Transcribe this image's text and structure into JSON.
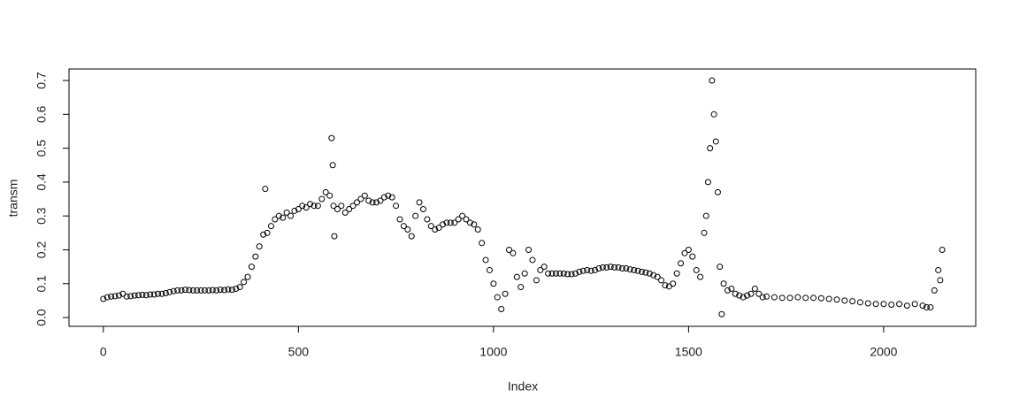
{
  "chart_data": {
    "type": "scatter",
    "xlabel": "Index",
    "ylabel": "transm",
    "x": [
      0,
      10,
      20,
      30,
      40,
      50,
      60,
      70,
      80,
      90,
      100,
      110,
      120,
      130,
      140,
      150,
      160,
      170,
      180,
      190,
      200,
      210,
      220,
      230,
      240,
      250,
      260,
      270,
      280,
      290,
      300,
      310,
      320,
      330,
      340,
      350,
      360,
      370,
      380,
      390,
      400,
      410,
      415,
      420,
      430,
      440,
      450,
      460,
      470,
      480,
      490,
      500,
      510,
      520,
      530,
      540,
      550,
      560,
      570,
      580,
      585,
      588,
      590,
      592,
      600,
      610,
      620,
      630,
      640,
      650,
      660,
      670,
      680,
      690,
      700,
      710,
      720,
      730,
      740,
      750,
      760,
      770,
      780,
      790,
      800,
      810,
      820,
      830,
      840,
      850,
      860,
      870,
      880,
      890,
      900,
      910,
      920,
      930,
      940,
      950,
      960,
      970,
      980,
      990,
      1000,
      1010,
      1020,
      1030,
      1040,
      1050,
      1060,
      1070,
      1080,
      1090,
      1100,
      1110,
      1120,
      1130,
      1140,
      1150,
      1160,
      1170,
      1180,
      1190,
      1200,
      1210,
      1220,
      1230,
      1240,
      1250,
      1260,
      1270,
      1280,
      1290,
      1300,
      1310,
      1320,
      1330,
      1340,
      1350,
      1360,
      1370,
      1380,
      1390,
      1400,
      1410,
      1420,
      1430,
      1440,
      1450,
      1460,
      1470,
      1480,
      1490,
      1500,
      1510,
      1520,
      1530,
      1540,
      1545,
      1550,
      1555,
      1560,
      1565,
      1570,
      1575,
      1580,
      1585,
      1590,
      1600,
      1610,
      1620,
      1630,
      1640,
      1650,
      1660,
      1670,
      1680,
      1690,
      1700,
      1720,
      1740,
      1760,
      1780,
      1800,
      1820,
      1840,
      1860,
      1880,
      1900,
      1920,
      1940,
      1960,
      1980,
      2000,
      2020,
      2040,
      2060,
      2080,
      2100,
      2110,
      2120,
      2130,
      2140,
      2145,
      2150
    ],
    "values": [
      0.055,
      0.06,
      0.062,
      0.063,
      0.065,
      0.07,
      0.062,
      0.063,
      0.065,
      0.066,
      0.067,
      0.066,
      0.068,
      0.068,
      0.07,
      0.07,
      0.072,
      0.075,
      0.078,
      0.08,
      0.08,
      0.082,
      0.081,
      0.08,
      0.08,
      0.08,
      0.08,
      0.08,
      0.081,
      0.08,
      0.082,
      0.081,
      0.083,
      0.082,
      0.085,
      0.09,
      0.105,
      0.12,
      0.15,
      0.18,
      0.21,
      0.245,
      0.38,
      0.25,
      0.27,
      0.29,
      0.3,
      0.295,
      0.31,
      0.3,
      0.315,
      0.32,
      0.33,
      0.325,
      0.335,
      0.33,
      0.33,
      0.35,
      0.37,
      0.36,
      0.53,
      0.45,
      0.33,
      0.24,
      0.32,
      0.33,
      0.31,
      0.32,
      0.33,
      0.34,
      0.35,
      0.36,
      0.345,
      0.34,
      0.34,
      0.345,
      0.355,
      0.36,
      0.355,
      0.33,
      0.29,
      0.27,
      0.26,
      0.24,
      0.3,
      0.34,
      0.32,
      0.29,
      0.27,
      0.26,
      0.265,
      0.275,
      0.28,
      0.28,
      0.28,
      0.29,
      0.3,
      0.29,
      0.28,
      0.275,
      0.26,
      0.22,
      0.17,
      0.14,
      0.1,
      0.06,
      0.025,
      0.07,
      0.2,
      0.19,
      0.12,
      0.09,
      0.13,
      0.2,
      0.17,
      0.11,
      0.14,
      0.15,
      0.13,
      0.13,
      0.13,
      0.13,
      0.13,
      0.128,
      0.128,
      0.13,
      0.135,
      0.138,
      0.14,
      0.138,
      0.14,
      0.145,
      0.148,
      0.148,
      0.15,
      0.148,
      0.148,
      0.145,
      0.145,
      0.142,
      0.14,
      0.138,
      0.135,
      0.133,
      0.13,
      0.125,
      0.12,
      0.11,
      0.095,
      0.092,
      0.1,
      0.13,
      0.16,
      0.19,
      0.2,
      0.18,
      0.14,
      0.12,
      0.25,
      0.3,
      0.4,
      0.5,
      0.7,
      0.6,
      0.52,
      0.37,
      0.15,
      0.01,
      0.1,
      0.08,
      0.085,
      0.07,
      0.065,
      0.06,
      0.065,
      0.07,
      0.085,
      0.07,
      0.06,
      0.062,
      0.06,
      0.058,
      0.058,
      0.06,
      0.058,
      0.058,
      0.057,
      0.055,
      0.053,
      0.05,
      0.048,
      0.045,
      0.042,
      0.04,
      0.04,
      0.038,
      0.04,
      0.035,
      0.04,
      0.035,
      0.03,
      0.03,
      0.08,
      0.14,
      0.11,
      0.2
    ],
    "xlim": [
      -88,
      2236
    ],
    "ylim": [
      -0.026,
      0.734
    ],
    "xticks": [
      0,
      500,
      1000,
      1500,
      2000
    ],
    "yticks": [
      {
        "value": 0,
        "label": "0.0"
      },
      0.1,
      0.2,
      0.3,
      0.4,
      0.5,
      0.6,
      0.7
    ],
    "color": "#000000"
  }
}
